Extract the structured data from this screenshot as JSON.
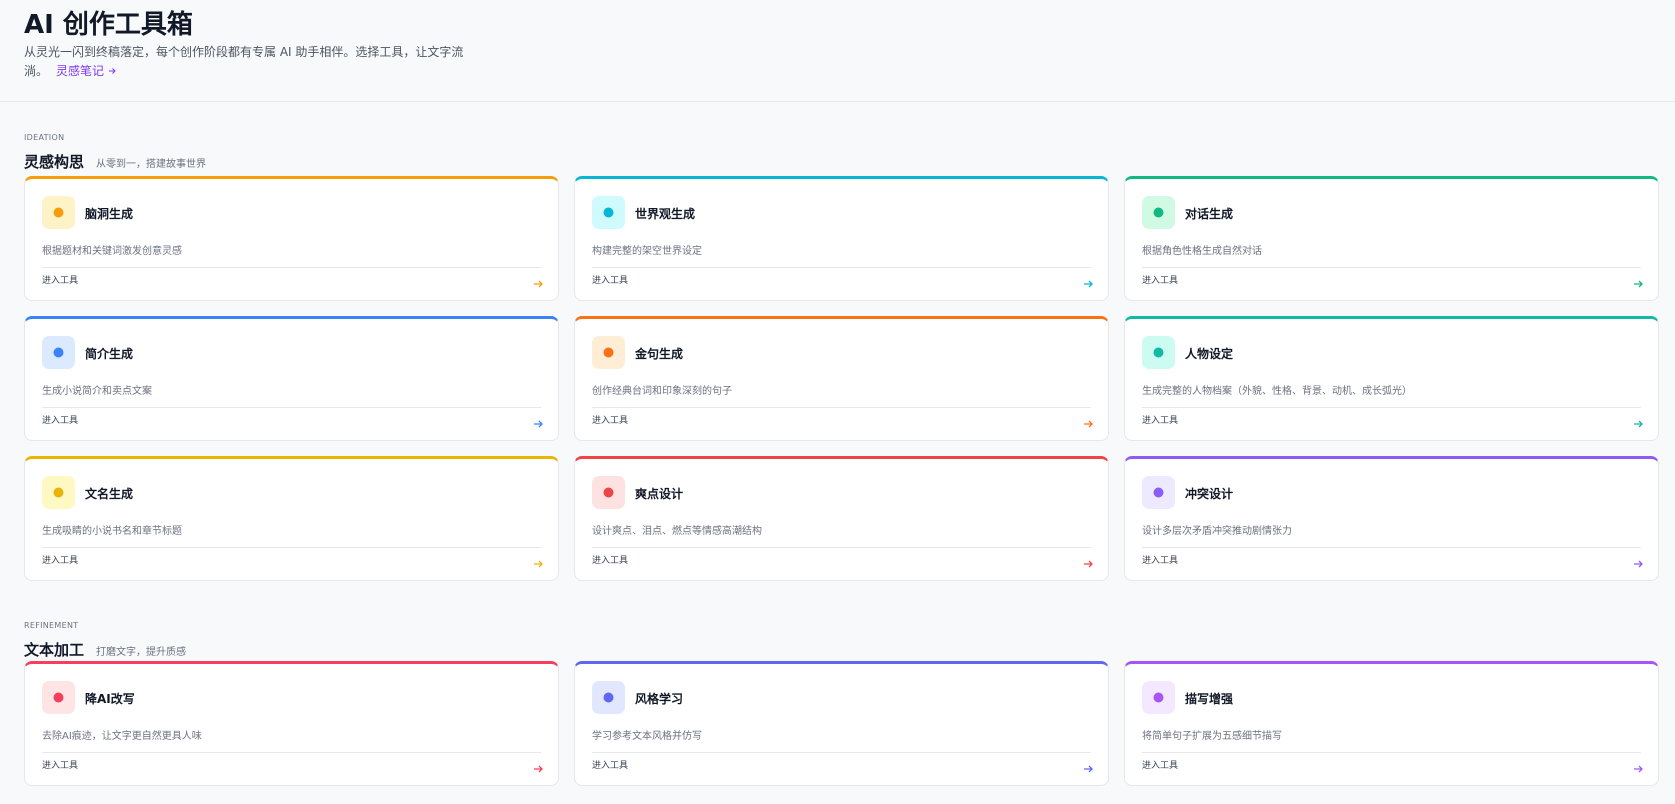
{
  "header": {
    "title": "AI 创作工具箱",
    "subtitle": "从灵光一闪到终稿落定，每个创作阶段都有专属 AI 助手相伴。选择工具，让文字流淌。",
    "link": "灵感笔记"
  },
  "sections": [
    {
      "label": "IDEATION",
      "title": "灵感构思",
      "subtitle": "从零到一，搭建故事世界",
      "tools": [
        {
          "name": "脑洞生成",
          "desc": "根据题材和关键词激发创意灵感",
          "action": "进入工具"
        },
        {
          "name": "世界观生成",
          "desc": "构建完整的架空世界设定",
          "action": "进入工具"
        },
        {
          "name": "对话生成",
          "desc": "根据角色性格生成自然对话",
          "action": "进入工具"
        },
        {
          "name": "简介生成",
          "desc": "生成小说简介和卖点文案",
          "action": "进入工具"
        },
        {
          "name": "金句生成",
          "desc": "创作经典台词和印象深刻的句子",
          "action": "进入工具"
        },
        {
          "name": "人物设定",
          "desc": "生成完整的人物档案（外貌、性格、背景、动机、成长弧光）",
          "action": "进入工具"
        },
        {
          "name": "文名生成",
          "desc": "生成吸睛的小说书名和章节标题",
          "action": "进入工具"
        },
        {
          "name": "爽点设计",
          "desc": "设计爽点、泪点、燃点等情感高潮结构",
          "action": "进入工具"
        },
        {
          "name": "冲突设计",
          "desc": "设计多层次矛盾冲突推动剧情张力",
          "action": "进入工具"
        }
      ]
    },
    {
      "label": "REFINEMENT",
      "title": "文本加工",
      "subtitle": "打磨文字，提升质感",
      "tools": [
        {
          "name": "降AI改写",
          "desc": "去除AI痕迹，让文字更自然更具人味",
          "action": "进入工具"
        },
        {
          "name": "风格学习",
          "desc": "学习参考文本风格并仿写",
          "action": "进入工具"
        },
        {
          "name": "描写增强",
          "desc": "将简单句子扩展为五感细节描写",
          "action": "进入工具"
        }
      ]
    }
  ]
}
